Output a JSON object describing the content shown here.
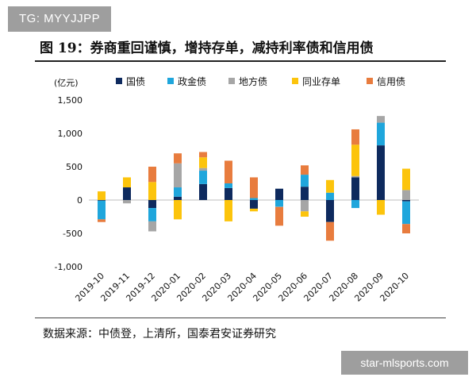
{
  "watermark_top": "TG: MYYJJPP",
  "watermark_bottom": "star-mlsports.com",
  "source": "数据来源：中债登，上清所，国泰君安证券研究",
  "chart_data": {
    "type": "bar",
    "stacked": true,
    "title": "图 19：券商重回谨慎，增持存单，减持利率债和信用债",
    "ylabel": "(亿元)",
    "ylim": [
      -1000,
      1500
    ],
    "yticks": [
      -1000,
      -500,
      0,
      500,
      1000,
      1500
    ],
    "ytick_labels": [
      "-1,000",
      "-500",
      "0",
      "500",
      "1,000",
      "1,500"
    ],
    "legend_position": "top",
    "categories": [
      "2019-10",
      "2019-11",
      "2019-12",
      "2020-01",
      "2020-02",
      "2020-03",
      "2020-04",
      "2020-05",
      "2020-06",
      "2020-07",
      "2020-08",
      "2020-09",
      "2020-10"
    ],
    "series": [
      {
        "name": "国债",
        "color": "#0e2a5e",
        "values": [
          -10,
          190,
          -120,
          50,
          240,
          180,
          -130,
          170,
          200,
          -330,
          340,
          820,
          -20
        ]
      },
      {
        "name": "政金债",
        "color": "#1fa6dc",
        "values": [
          -280,
          0,
          -200,
          140,
          200,
          70,
          30,
          -100,
          180,
          110,
          -120,
          340,
          -340
        ]
      },
      {
        "name": "地方债",
        "color": "#a6a6a6",
        "values": [
          0,
          -50,
          -150,
          360,
          40,
          0,
          0,
          -5,
          -170,
          0,
          20,
          100,
          150
        ]
      },
      {
        "name": "同业存单",
        "color": "#fcc40c",
        "values": [
          130,
          150,
          270,
          -290,
          160,
          -320,
          -40,
          0,
          -80,
          190,
          470,
          -220,
          320
        ]
      },
      {
        "name": "信用债",
        "color": "#e87c3e",
        "values": [
          -40,
          0,
          230,
          150,
          80,
          340,
          310,
          -280,
          140,
          -280,
          230,
          0,
          -140
        ]
      }
    ]
  }
}
